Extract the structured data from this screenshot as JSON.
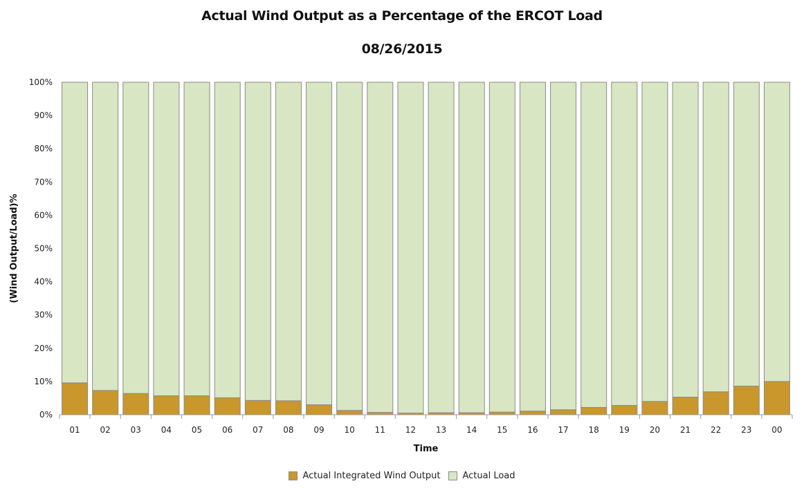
{
  "chart_data": {
    "type": "bar",
    "stacked": true,
    "percent_stacked": true,
    "title": "Actual Wind Output as a Percentage of the ERCOT Load",
    "subtitle": "08/26/2015",
    "xlabel": "Time",
    "ylabel": "(Wind Output/Load)%",
    "ylim": [
      0,
      100
    ],
    "y_ticks": [
      "0%",
      "10%",
      "20%",
      "30%",
      "40%",
      "50%",
      "60%",
      "70%",
      "80%",
      "90%",
      "100%"
    ],
    "grid": false,
    "legend_position": "bottom-center",
    "categories": [
      "01",
      "02",
      "03",
      "04",
      "05",
      "06",
      "07",
      "08",
      "09",
      "10",
      "11",
      "12",
      "13",
      "14",
      "15",
      "16",
      "17",
      "18",
      "19",
      "20",
      "21",
      "22",
      "23",
      "00"
    ],
    "series": [
      {
        "name": "Actual Integrated Wind Output",
        "color": "#c9972c",
        "values": [
          9.6,
          7.3,
          6.4,
          5.7,
          5.7,
          5.1,
          4.3,
          4.2,
          3.0,
          1.3,
          0.7,
          0.5,
          0.6,
          0.6,
          0.8,
          1.1,
          1.5,
          2.2,
          2.8,
          4.0,
          5.3,
          6.9,
          8.6,
          10.0
        ]
      },
      {
        "name": "Actual Load",
        "color": "#d9e6c3",
        "values": [
          90.4,
          92.7,
          93.6,
          94.3,
          94.3,
          94.9,
          95.7,
          95.8,
          97.0,
          98.7,
          99.3,
          99.5,
          99.4,
          99.4,
          99.2,
          98.9,
          98.5,
          97.8,
          97.2,
          96.0,
          94.7,
          93.1,
          91.4,
          90.0
        ]
      }
    ]
  }
}
